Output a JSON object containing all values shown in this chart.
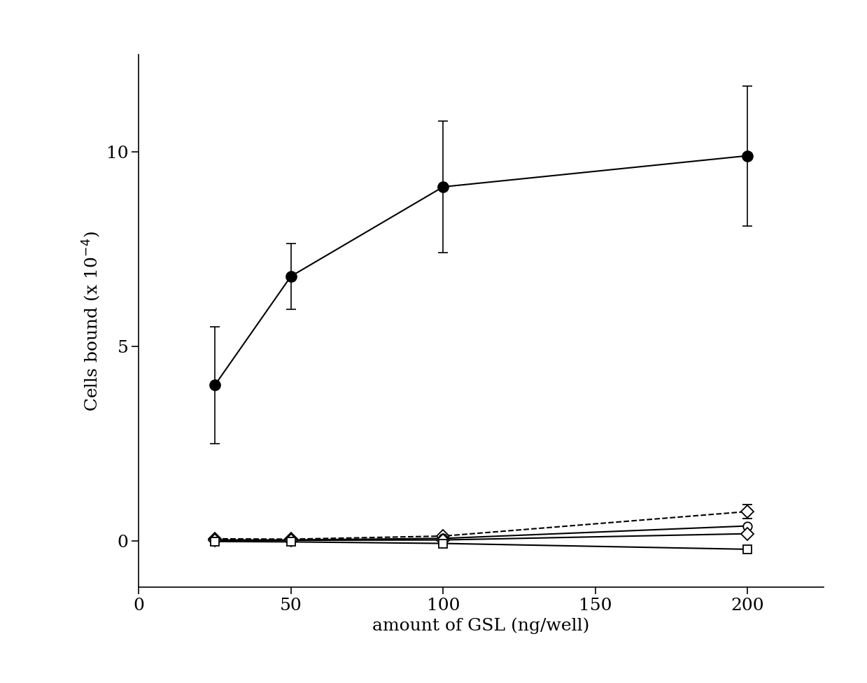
{
  "x": [
    25,
    50,
    100,
    200
  ],
  "series_filled_circle": {
    "y": [
      4.0,
      6.8,
      9.1,
      9.9
    ],
    "yerr": [
      1.5,
      0.85,
      1.7,
      1.8
    ],
    "linestyle": "solid",
    "marker": "o",
    "color": "#000000",
    "linewidth": 1.5,
    "markersize": 11
  },
  "series_dashed_diamond": {
    "y": [
      0.05,
      0.04,
      0.12,
      0.75
    ],
    "yerr": [
      0.0,
      0.0,
      0.0,
      0.18
    ],
    "linestyle": "dashed",
    "marker": "D",
    "color": "#000000",
    "linewidth": 1.5,
    "markersize": 9
  },
  "series_open_circle": {
    "y": [
      0.02,
      0.02,
      0.06,
      0.38
    ],
    "yerr": [
      0.0,
      0.0,
      0.0,
      0.0
    ],
    "linestyle": "solid",
    "marker": "o",
    "color": "#000000",
    "linewidth": 1.5,
    "markersize": 9
  },
  "series_open_diamond": {
    "y": [
      0.01,
      0.01,
      0.02,
      0.18
    ],
    "yerr": [
      0.0,
      0.0,
      0.0,
      0.0
    ],
    "linestyle": "solid",
    "marker": "D",
    "color": "#000000",
    "linewidth": 1.5,
    "markersize": 9
  },
  "series_open_square": {
    "y": [
      -0.02,
      -0.03,
      -0.07,
      -0.22
    ],
    "yerr": [
      0.0,
      0.0,
      0.0,
      0.0
    ],
    "linestyle": "solid",
    "marker": "s",
    "color": "#000000",
    "linewidth": 1.5,
    "markersize": 9
  },
  "xlabel": "amount of GSL (ng/well)",
  "ylabel": "Cells bound (x 10$^{-4}$)",
  "xlim": [
    0,
    225
  ],
  "ylim": [
    -1.2,
    12.5
  ],
  "xticks": [
    0,
    50,
    100,
    150,
    200
  ],
  "yticks": [
    0,
    5,
    10
  ],
  "background_color": "#ffffff",
  "label_fontsize": 18,
  "tick_fontsize": 18
}
